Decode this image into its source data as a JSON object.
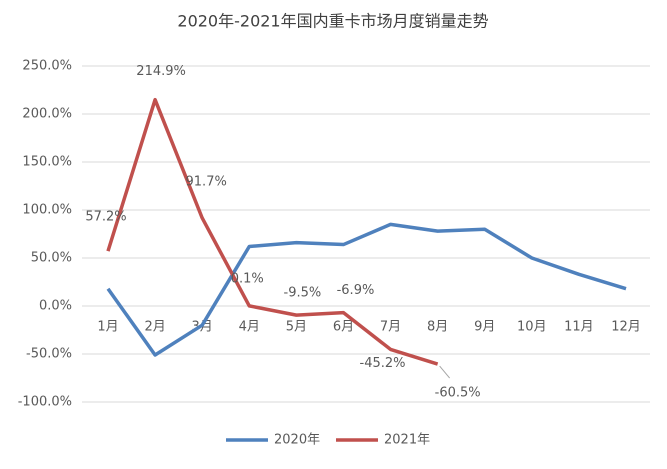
{
  "chart_data": {
    "type": "line",
    "title": "2020年-2021年国内重卡市场月度销量走势",
    "categories": [
      "1月",
      "2月",
      "3月",
      "4月",
      "5月",
      "6月",
      "7月",
      "8月",
      "9月",
      "10月",
      "11月",
      "12月"
    ],
    "series": [
      {
        "name": "2020年",
        "color": "#4f81bd",
        "values": [
          18,
          -51,
          -20,
          62,
          66,
          64,
          85,
          78,
          80,
          50,
          33,
          18
        ]
      },
      {
        "name": "2021年",
        "color": "#c0504d",
        "values": [
          57.2,
          214.9,
          91.7,
          0.1,
          -9.5,
          -6.9,
          -45.2,
          -60.5,
          null,
          null,
          null,
          null
        ],
        "value_labels": [
          "57.2%",
          "214.9%",
          "91.7%",
          "0.1%",
          "-9.5%",
          "-6.9%",
          "-45.2%",
          "-60.5%",
          null,
          null,
          null,
          null
        ]
      }
    ],
    "ylim": [
      -100,
      250
    ],
    "yticks": [
      {
        "value": -100,
        "label": "-100.0%"
      },
      {
        "value": -50,
        "label": "-50.0%"
      },
      {
        "value": 0,
        "label": "0.0%"
      },
      {
        "value": 50,
        "label": "50.0%"
      },
      {
        "value": 100,
        "label": "100.0%"
      },
      {
        "value": 150,
        "label": "150.0%"
      },
      {
        "value": 200,
        "label": "200.0%"
      },
      {
        "value": 250,
        "label": "250.0%"
      }
    ],
    "grid": true,
    "legend": "bottom"
  }
}
